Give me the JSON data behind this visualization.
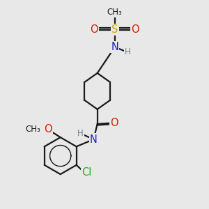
{
  "bg_color": "#e8e8e8",
  "bond_color": "#1a1a1a",
  "bond_lw": 1.6,
  "atom_colors": {
    "C": "#1a1a1a",
    "H": "#708090",
    "N": "#2020cc",
    "O": "#cc2200",
    "S": "#ccaa00",
    "Cl": "#22aa22"
  },
  "fs_large": 10.5,
  "fs_small": 8.5
}
